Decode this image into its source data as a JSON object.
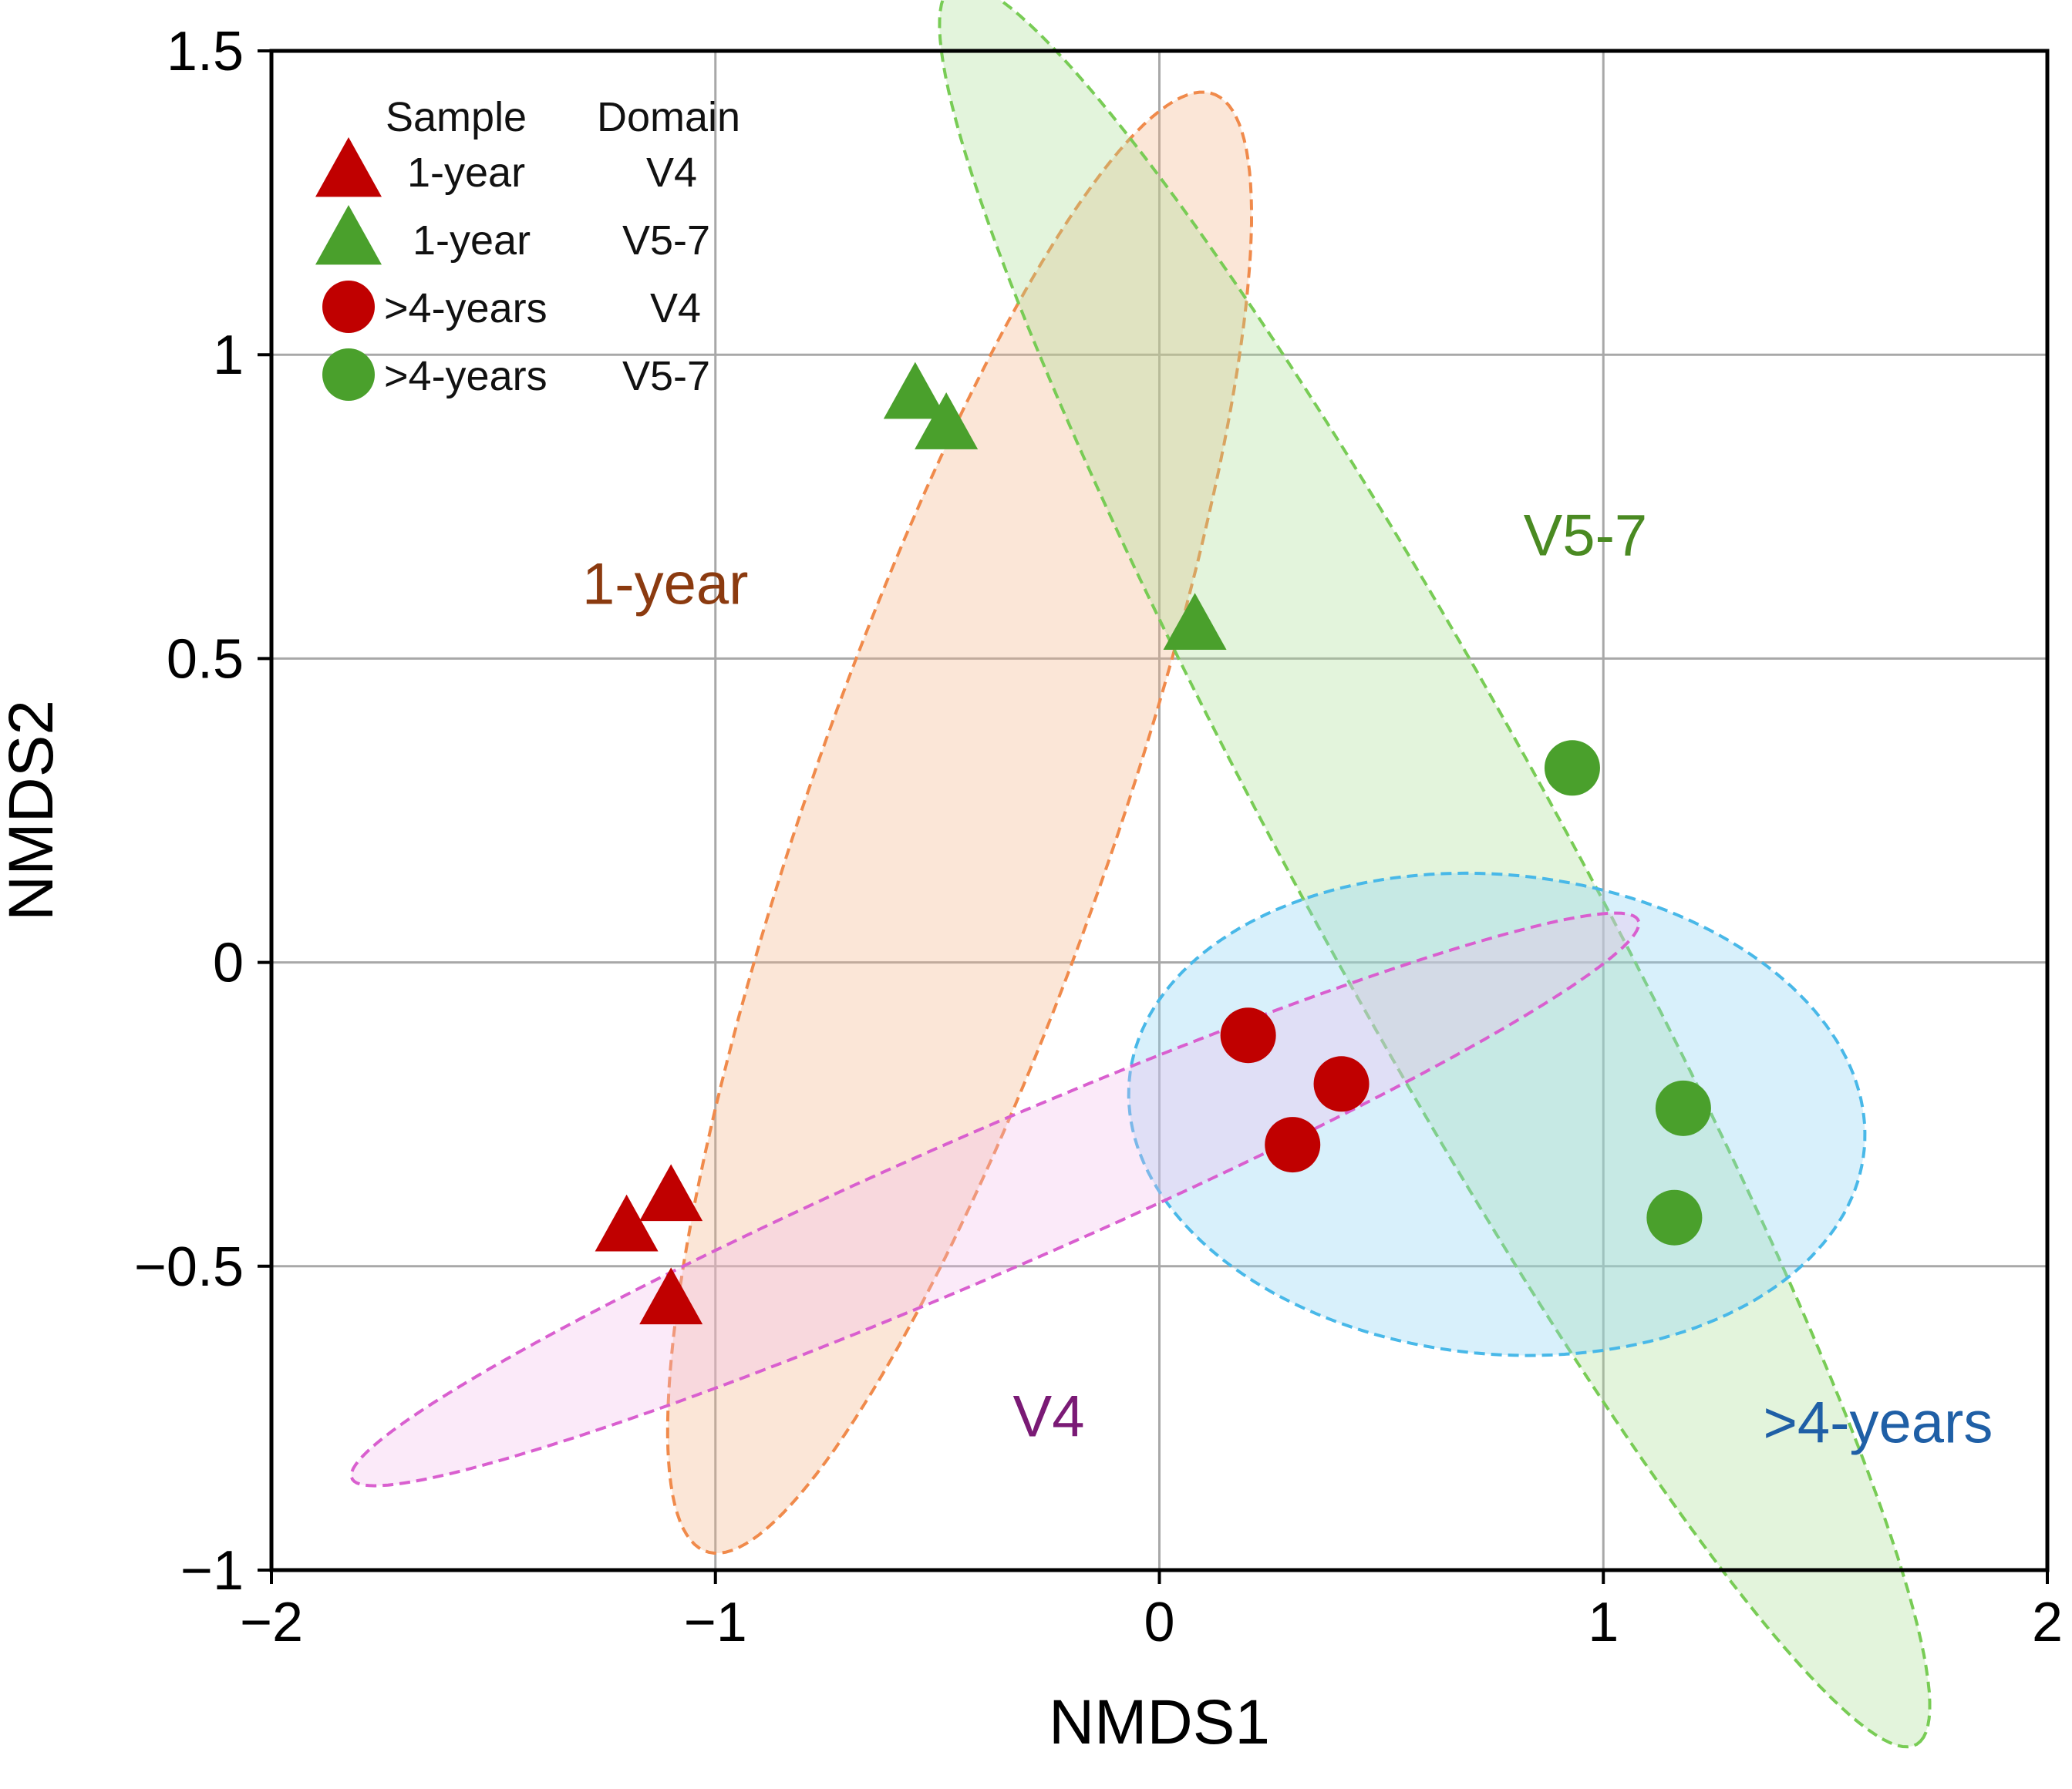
{
  "chart_data": {
    "type": "scatter",
    "title": "",
    "xlabel": "NMDS1",
    "ylabel": "NMDS2",
    "xlim": [
      -2,
      2
    ],
    "ylim": [
      -1,
      1.5
    ],
    "xticks": [
      -2,
      -1,
      0,
      1,
      2
    ],
    "xtick_labels": [
      "−2",
      "−1",
      "0",
      "1",
      "2"
    ],
    "yticks": [
      -1,
      -0.5,
      0,
      0.5,
      1,
      1.5
    ],
    "ytick_labels": [
      "−1",
      "−0.5",
      "0",
      "0.5",
      "1",
      "1.5"
    ],
    "grid": true,
    "legend": {
      "position": "top-left",
      "headers": [
        "Sample",
        "Domain"
      ],
      "entries": [
        {
          "sample": "1-year",
          "domain": "V4",
          "marker": "triangle",
          "color": "#c00000"
        },
        {
          "sample": "1-year",
          "domain": "V5-7",
          "marker": "triangle",
          "color": "#4aa02c"
        },
        {
          "sample": ">4-years",
          "domain": "V4",
          "marker": "circle",
          "color": "#c00000"
        },
        {
          "sample": ">4-years",
          "domain": "V5-7",
          "marker": "circle",
          "color": "#4aa02c"
        }
      ]
    },
    "series": [
      {
        "name": "1-year V4",
        "marker": "triangle",
        "color": "#c00000",
        "points": [
          [
            -1.2,
            -0.44
          ],
          [
            -1.1,
            -0.39
          ],
          [
            -1.1,
            -0.56
          ]
        ]
      },
      {
        "name": "1-year V5-7",
        "marker": "triangle",
        "color": "#4aa02c",
        "points": [
          [
            -0.55,
            0.93
          ],
          [
            -0.48,
            0.88
          ],
          [
            0.08,
            0.55
          ]
        ]
      },
      {
        "name": ">4-years V4",
        "marker": "circle",
        "color": "#c00000",
        "points": [
          [
            0.2,
            -0.12
          ],
          [
            0.41,
            -0.2
          ],
          [
            0.3,
            -0.3
          ]
        ]
      },
      {
        "name": ">4-years V5-7",
        "marker": "circle",
        "color": "#4aa02c",
        "points": [
          [
            0.93,
            0.32
          ],
          [
            1.18,
            -0.24
          ],
          [
            1.16,
            -0.42
          ]
        ]
      }
    ],
    "ellipses": [
      {
        "label": "1-year",
        "label_color": "#8b3a0f",
        "label_x": -1.3,
        "label_y": 0.59,
        "fill": "#f4b183",
        "stroke": "#f08a4b",
        "fill_opacity": 0.32,
        "center": [
          -0.45,
          0.23
        ],
        "rx": 1.33,
        "ry": 0.33,
        "angle_deg": 63.8
      },
      {
        "label": "V5-7",
        "label_color": "#4a8a22",
        "label_x": 0.82,
        "label_y": 0.67,
        "fill": "#a9dc92",
        "stroke": "#78cc55",
        "fill_opacity": 0.32,
        "center": [
          0.62,
          0.16
        ],
        "rx": 1.81,
        "ry": 0.27,
        "angle_deg": -52.8
      },
      {
        "label": ">4-years",
        "label_color": "#1f5fa6",
        "label_x": 1.36,
        "label_y": -0.79,
        "fill": "#8fd3f4",
        "stroke": "#48b8e8",
        "fill_opacity": 0.35,
        "center": [
          0.76,
          -0.25
        ],
        "rx": 0.83,
        "ry": 0.395,
        "angle_deg": -3.0
      },
      {
        "label": "V4",
        "label_color": "#7a1a75",
        "label_x": -0.33,
        "label_y": -0.78,
        "fill": "#f2b8ec",
        "stroke": "#d95fcf",
        "fill_opacity": 0.3,
        "center": [
          -0.37,
          -0.39
        ],
        "rx": 1.52,
        "ry": 0.12,
        "angle_deg": 17.5
      }
    ]
  }
}
